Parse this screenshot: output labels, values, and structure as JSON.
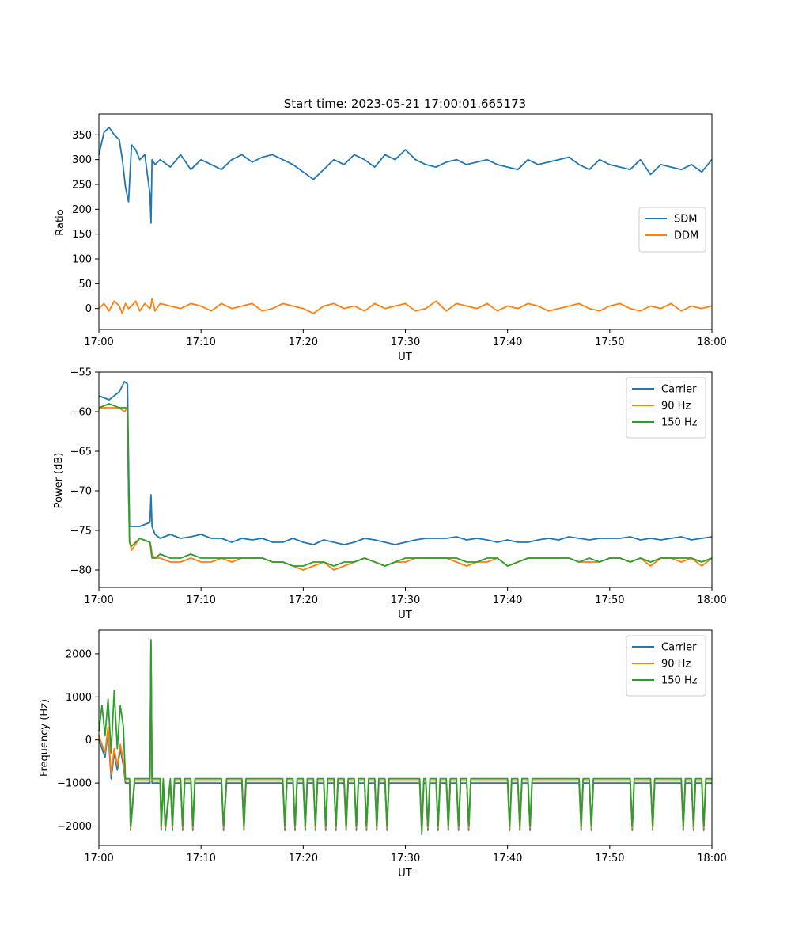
{
  "figure_title": "Start time: 2023-05-21 17:00:01.665173",
  "colors": {
    "blue": "#1f77b4",
    "orange": "#ff7f0e",
    "green": "#2ca02c"
  },
  "chart_data": [
    {
      "type": "line",
      "title": "Start time: 2023-05-21 17:00:01.665173",
      "xlabel": "UT",
      "ylabel": "Ratio",
      "xticks": [
        "17:00",
        "17:10",
        "17:20",
        "17:30",
        "17:40",
        "17:50",
        "18:00"
      ],
      "xlim_minutes": [
        0,
        60
      ],
      "ylim": [
        -42,
        392
      ],
      "yticks": [
        0,
        50,
        100,
        150,
        200,
        250,
        300,
        350
      ],
      "ytick_labels": [
        "0",
        "50",
        "100",
        "150",
        "200",
        "250",
        "300",
        "350"
      ],
      "legend": "center-right",
      "grid": false,
      "x_minutes": [
        0,
        0.5,
        1,
        1.5,
        2,
        2.3,
        2.6,
        2.9,
        3.2,
        3.6,
        4,
        4.5,
        5,
        5.1,
        5.2,
        5.5,
        6,
        7,
        8,
        9,
        10,
        11,
        12,
        13,
        14,
        15,
        16,
        17,
        18,
        19,
        20,
        21,
        22,
        23,
        24,
        25,
        26,
        27,
        28,
        29,
        30,
        31,
        32,
        33,
        34,
        35,
        36,
        37,
        38,
        39,
        40,
        41,
        42,
        43,
        44,
        45,
        46,
        47,
        48,
        49,
        50,
        51,
        52,
        53,
        54,
        55,
        56,
        57,
        58,
        59,
        60
      ],
      "series": [
        {
          "name": "SDM",
          "color": "#1f77b4",
          "values": [
            310,
            355,
            365,
            350,
            340,
            300,
            245,
            215,
            330,
            320,
            300,
            310,
            230,
            172,
            300,
            290,
            300,
            285,
            310,
            280,
            300,
            290,
            280,
            300,
            310,
            295,
            305,
            310,
            300,
            290,
            275,
            260,
            280,
            300,
            290,
            310,
            300,
            285,
            310,
            300,
            320,
            300,
            290,
            285,
            295,
            300,
            290,
            295,
            300,
            290,
            285,
            280,
            300,
            290,
            295,
            300,
            305,
            290,
            280,
            300,
            290,
            285,
            280,
            300,
            270,
            290,
            285,
            280,
            290,
            275,
            300
          ]
        },
        {
          "name": "DDM",
          "color": "#ff7f0e",
          "values": [
            0,
            10,
            -5,
            15,
            5,
            -10,
            10,
            0,
            5,
            15,
            -5,
            10,
            0,
            5,
            20,
            -5,
            10,
            5,
            0,
            10,
            5,
            -5,
            10,
            0,
            5,
            10,
            -5,
            0,
            10,
            5,
            0,
            -10,
            5,
            10,
            0,
            5,
            -5,
            10,
            0,
            5,
            10,
            -5,
            0,
            15,
            -5,
            10,
            5,
            0,
            10,
            -5,
            5,
            0,
            10,
            5,
            -5,
            0,
            5,
            10,
            0,
            -5,
            5,
            10,
            0,
            -5,
            5,
            0,
            10,
            -5,
            5,
            0,
            5
          ]
        }
      ]
    },
    {
      "type": "line",
      "title": "",
      "xlabel": "UT",
      "ylabel": "Power (dB)",
      "xticks": [
        "17:00",
        "17:10",
        "17:20",
        "17:30",
        "17:40",
        "17:50",
        "18:00"
      ],
      "xlim_minutes": [
        0,
        60
      ],
      "ylim": [
        -82.2,
        -55
      ],
      "yticks": [
        -80,
        -75,
        -70,
        -65,
        -60,
        -55
      ],
      "ytick_labels": [
        "−80",
        "−75",
        "−70",
        "−65",
        "−60",
        "−55"
      ],
      "legend": "top-right",
      "grid": false,
      "x_minutes": [
        0,
        1,
        2,
        2.5,
        2.8,
        2.9,
        3,
        3.2,
        4,
        5,
        5.1,
        5.2,
        5.5,
        6,
        7,
        8,
        9,
        10,
        11,
        12,
        13,
        14,
        15,
        16,
        17,
        18,
        19,
        20,
        21,
        22,
        23,
        24,
        25,
        26,
        27,
        28,
        29,
        30,
        31,
        32,
        33,
        34,
        35,
        36,
        37,
        38,
        39,
        40,
        41,
        42,
        43,
        44,
        45,
        46,
        47,
        48,
        49,
        50,
        51,
        52,
        53,
        54,
        55,
        56,
        57,
        58,
        59,
        60
      ],
      "series": [
        {
          "name": "Carrier",
          "color": "#1f77b4",
          "values": [
            -58,
            -58.5,
            -57.5,
            -56.2,
            -56.5,
            -66,
            -74.5,
            -74.5,
            -74.5,
            -74,
            -70.5,
            -74.5,
            -75.5,
            -76,
            -75.5,
            -76,
            -75.8,
            -75.5,
            -76,
            -76,
            -76.5,
            -76,
            -76.2,
            -76,
            -76.5,
            -76.5,
            -76,
            -76.5,
            -76.8,
            -76.2,
            -76.5,
            -76.8,
            -76.5,
            -76,
            -76.2,
            -76.5,
            -76.8,
            -76.5,
            -76.2,
            -76,
            -76,
            -76,
            -75.8,
            -76.2,
            -76,
            -76.2,
            -76.5,
            -76.2,
            -76.5,
            -76.5,
            -76.2,
            -76,
            -76.2,
            -75.8,
            -76,
            -76.2,
            -76,
            -76,
            -76,
            -75.8,
            -76.2,
            -76,
            -76.2,
            -76,
            -75.8,
            -76.2,
            -76,
            -75.8
          ]
        },
        {
          "name": "90 Hz",
          "color": "#ff7f0e",
          "values": [
            -59.5,
            -59.5,
            -59.5,
            -60,
            -59.5,
            -70,
            -76.5,
            -77.5,
            -76,
            -76.5,
            -77,
            -78,
            -78.5,
            -78.5,
            -79,
            -79,
            -78.5,
            -79,
            -79,
            -78.5,
            -79,
            -78.5,
            -78.5,
            -78.5,
            -79,
            -79,
            -79.5,
            -80,
            -79.5,
            -79,
            -80,
            -79.5,
            -79,
            -78.5,
            -79,
            -79.5,
            -79,
            -79,
            -78.5,
            -78.5,
            -78.5,
            -78.5,
            -79,
            -79.5,
            -79,
            -79,
            -78.5,
            -79.5,
            -79,
            -78.5,
            -78.5,
            -78.5,
            -78.5,
            -78.5,
            -79,
            -79,
            -79,
            -78.5,
            -78.5,
            -79,
            -78.5,
            -79.5,
            -78.5,
            -78.5,
            -79,
            -78.5,
            -79.5,
            -78.5
          ]
        },
        {
          "name": "150 Hz",
          "color": "#2ca02c",
          "values": [
            -59.5,
            -59,
            -59.5,
            -59.5,
            -59.5,
            -70,
            -76.5,
            -77,
            -76,
            -76.5,
            -77.5,
            -78.5,
            -78.5,
            -78,
            -78.5,
            -78.5,
            -78,
            -78.5,
            -78.5,
            -78.5,
            -78.5,
            -78.5,
            -78.5,
            -78.5,
            -79,
            -79,
            -79.5,
            -79.5,
            -79,
            -79,
            -79.5,
            -79,
            -79,
            -78.5,
            -79,
            -79.5,
            -79,
            -78.5,
            -78.5,
            -78.5,
            -78.5,
            -78.5,
            -78.5,
            -79,
            -79,
            -78.5,
            -78.5,
            -79.5,
            -79,
            -78.5,
            -78.5,
            -78.5,
            -78.5,
            -78.5,
            -79,
            -78.5,
            -79,
            -78.5,
            -78.5,
            -79,
            -78.5,
            -79,
            -78.5,
            -78.5,
            -78.5,
            -78.5,
            -79,
            -78.5
          ]
        }
      ]
    },
    {
      "type": "line",
      "title": "",
      "xlabel": "UT",
      "ylabel": "Frequency (Hz)",
      "xticks": [
        "17:00",
        "17:10",
        "17:20",
        "17:30",
        "17:40",
        "17:50",
        "18:00"
      ],
      "xlim_minutes": [
        0,
        60
      ],
      "ylim": [
        -2450,
        2550
      ],
      "yticks": [
        -2000,
        -1000,
        0,
        1000,
        2000
      ],
      "ytick_labels": [
        "−2000",
        "−1000",
        "0",
        "1000",
        "2000"
      ],
      "legend": "top-right",
      "grid": false,
      "x_minutes": [
        0,
        0.3,
        0.6,
        0.9,
        1.2,
        1.5,
        1.8,
        2.1,
        2.4,
        2.6,
        2.9,
        3.0,
        3.1,
        3.5,
        4,
        5,
        5.1,
        5.2,
        5.4,
        6,
        6.1,
        6.3,
        6.5,
        7,
        7.2,
        7.4,
        8,
        8.2,
        8.4,
        9,
        9.2,
        9.4,
        10,
        12,
        12.2,
        12.5,
        14,
        14.2,
        14.4,
        18,
        18.2,
        18.4,
        19,
        19.2,
        19.4,
        20,
        20.2,
        20.4,
        21,
        21.2,
        21.4,
        22,
        22.2,
        22.4,
        23,
        23.2,
        23.4,
        24,
        24.2,
        24.4,
        25,
        25.2,
        25.4,
        26,
        26.2,
        26.4,
        27,
        27.2,
        27.4,
        28,
        28.2,
        28.4,
        30,
        31.4,
        31.6,
        31.8,
        32,
        32.2,
        32.4,
        33,
        33.2,
        33.4,
        34,
        34.2,
        34.4,
        35,
        35.2,
        35.4,
        36,
        36.2,
        36.4,
        37,
        40,
        40.2,
        40.4,
        41,
        41.2,
        41.4,
        42,
        42.2,
        42.4,
        47,
        47.2,
        47.4,
        48,
        48.2,
        48.4,
        49,
        50,
        52,
        52.2,
        52.4,
        54,
        54.2,
        54.4,
        55,
        56,
        57,
        57.2,
        57.4,
        58,
        58.2,
        58.4,
        59,
        59.2,
        59.4,
        60
      ],
      "series": [
        {
          "name": "Carrier",
          "color": "#1f77b4",
          "values": [
            0,
            -200,
            -400,
            200,
            -900,
            -300,
            -700,
            -200,
            -600,
            -1000,
            -1000,
            -1000,
            -2100,
            -1000,
            -1000,
            -1000,
            2200,
            -1000,
            -1000,
            -1000,
            -2100,
            -1000,
            -2100,
            -1000,
            -2100,
            -1000,
            -1000,
            -2100,
            -1000,
            -1000,
            -2100,
            -1000,
            -1000,
            -1000,
            -2100,
            -1000,
            -1000,
            -2100,
            -1000,
            -1000,
            -2100,
            -1000,
            -1000,
            -2100,
            -1000,
            -1000,
            -2100,
            -1000,
            -1000,
            -2100,
            -1000,
            -1000,
            -2100,
            -1000,
            -1000,
            -2100,
            -1000,
            -1000,
            -2100,
            -1000,
            -1000,
            -2100,
            -1000,
            -1000,
            -2100,
            -1000,
            -1000,
            -2100,
            -1000,
            -1000,
            -2100,
            -1000,
            -1000,
            -1000,
            -2200,
            -1000,
            -1000,
            -2100,
            -1000,
            -1000,
            -2100,
            -1000,
            -1000,
            -2100,
            -1000,
            -1000,
            -2100,
            -1000,
            -1000,
            -2100,
            -1000,
            -1000,
            -1000,
            -2100,
            -1000,
            -1000,
            -2100,
            -1000,
            -1000,
            -2100,
            -1000,
            -1000,
            -2100,
            -1000,
            -1000,
            -2100,
            -1000,
            -1000,
            -1000,
            -1000,
            -2100,
            -1000,
            -1000,
            -2100,
            -1000,
            -1000,
            -1000,
            -1000,
            -2100,
            -1000,
            -1000,
            -2100,
            -1000,
            -1000,
            -2100,
            -1000,
            -1000
          ]
        },
        {
          "name": "90 Hz",
          "color": "#ff7f0e",
          "values": [
            100,
            -100,
            -300,
            300,
            -800,
            -200,
            -600,
            -100,
            -500,
            -950,
            -950,
            -950,
            -2050,
            -950,
            -950,
            -950,
            2250,
            -950,
            -950,
            -950,
            -2050,
            -950,
            -2050,
            -950,
            -2050,
            -950,
            -950,
            -2050,
            -950,
            -950,
            -2050,
            -950,
            -950,
            -950,
            -2050,
            -950,
            -950,
            -2050,
            -950,
            -950,
            -2050,
            -950,
            -950,
            -2050,
            -950,
            -950,
            -2050,
            -950,
            -950,
            -2050,
            -950,
            -950,
            -2050,
            -950,
            -950,
            -2050,
            -950,
            -950,
            -2050,
            -950,
            -950,
            -2050,
            -950,
            -950,
            -2050,
            -950,
            -950,
            -2050,
            -950,
            -950,
            -2050,
            -950,
            -950,
            -950,
            -2150,
            -950,
            -950,
            -2050,
            -950,
            -950,
            -2050,
            -950,
            -950,
            -2050,
            -950,
            -950,
            -2050,
            -950,
            -950,
            -2050,
            -950,
            -950,
            -950,
            -2050,
            -950,
            -950,
            -2050,
            -950,
            -950,
            -2050,
            -950,
            -950,
            -2050,
            -950,
            -950,
            -2050,
            -950,
            -950,
            -950,
            -950,
            -2050,
            -950,
            -950,
            -2050,
            -950,
            -950,
            -950,
            -950,
            -2050,
            -950,
            -950,
            -2050,
            -950,
            -950,
            -2050,
            -950,
            -950
          ]
        },
        {
          "name": "150 Hz",
          "color": "#2ca02c",
          "values": [
            200,
            800,
            100,
            950,
            -300,
            1150,
            -200,
            800,
            300,
            -900,
            -900,
            -900,
            -2000,
            -900,
            -900,
            -900,
            2330,
            -900,
            -900,
            -900,
            -2000,
            -900,
            -2000,
            -900,
            -2000,
            -900,
            -900,
            -2000,
            -900,
            -900,
            -2000,
            -900,
            -900,
            -900,
            -2000,
            -900,
            -900,
            -2000,
            -900,
            -900,
            -2000,
            -900,
            -900,
            -2000,
            -900,
            -900,
            -2000,
            -900,
            -900,
            -2000,
            -900,
            -900,
            -2000,
            -900,
            -900,
            -2000,
            -900,
            -900,
            -2000,
            -900,
            -900,
            -2000,
            -900,
            -900,
            -2000,
            -900,
            -900,
            -2000,
            -900,
            -900,
            -2000,
            -900,
            -900,
            -900,
            -2100,
            -900,
            -900,
            -2000,
            -900,
            -900,
            -2000,
            -900,
            -900,
            -2000,
            -900,
            -900,
            -2000,
            -900,
            -900,
            -2000,
            -900,
            -900,
            -900,
            -2000,
            -900,
            -900,
            -2000,
            -900,
            -900,
            -2000,
            -900,
            -900,
            -2000,
            -900,
            -900,
            -2000,
            -900,
            -900,
            -900,
            -900,
            -2000,
            -900,
            -900,
            -2000,
            -900,
            -900,
            -900,
            -900,
            -2000,
            -900,
            -900,
            -2000,
            -900,
            -900,
            -2000,
            -900,
            -900
          ]
        }
      ]
    }
  ]
}
